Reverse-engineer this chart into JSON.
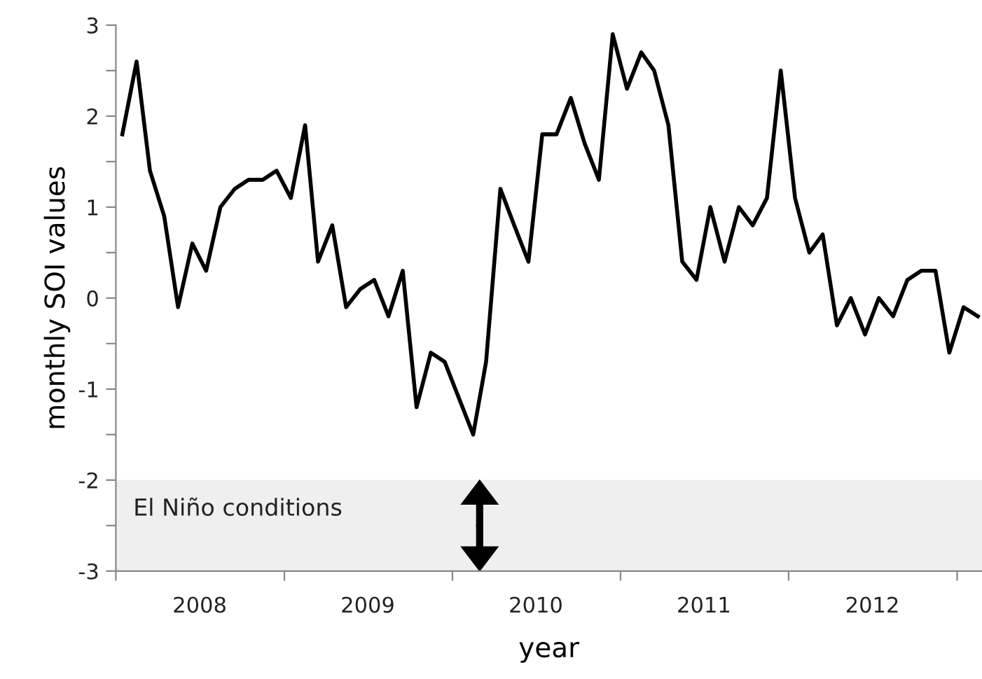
{
  "chart_data": {
    "type": "line",
    "xlabel": "year",
    "ylabel": "monthly SOI values",
    "x": [
      "2008-01-15",
      "2008-02-15",
      "2008-03-15",
      "2008-04-15",
      "2008-05-15",
      "2008-06-15",
      "2008-07-15",
      "2008-08-15",
      "2008-09-15",
      "2008-10-15",
      "2008-11-15",
      "2008-12-15",
      "2009-01-15",
      "2009-02-15",
      "2009-03-15",
      "2009-04-15",
      "2009-05-15",
      "2009-06-15",
      "2009-07-15",
      "2009-08-15",
      "2009-09-15",
      "2009-10-15",
      "2009-11-15",
      "2009-12-15",
      "2010-01-15",
      "2010-02-15",
      "2010-03-15",
      "2010-04-15",
      "2010-05-15",
      "2010-06-15",
      "2010-07-15",
      "2010-08-15",
      "2010-09-15",
      "2010-10-15",
      "2010-11-15",
      "2010-12-15",
      "2011-01-15",
      "2011-02-15",
      "2011-03-15",
      "2011-04-15",
      "2011-05-15",
      "2011-06-15",
      "2011-07-15",
      "2011-08-15",
      "2011-09-15",
      "2011-10-15",
      "2011-11-15",
      "2011-12-15",
      "2012-01-15",
      "2012-02-15",
      "2012-03-15",
      "2012-04-15",
      "2012-05-15",
      "2012-06-15",
      "2012-07-15",
      "2012-08-15",
      "2012-09-15",
      "2012-10-15",
      "2012-11-15",
      "2012-12-15",
      "2013-01-15",
      "2013-02-15"
    ],
    "series": [
      {
        "color": "#000000",
        "values": [
          1.8,
          2.6,
          1.4,
          0.9,
          -0.1,
          0.6,
          0.3,
          1.0,
          1.2,
          1.3,
          1.3,
          1.4,
          1.1,
          1.9,
          0.4,
          0.8,
          -0.1,
          0.1,
          0.2,
          -0.2,
          0.3,
          -1.2,
          -0.6,
          -0.7,
          -1.1,
          -1.5,
          -0.7,
          1.2,
          0.8,
          0.4,
          1.8,
          1.8,
          2.2,
          1.7,
          1.3,
          2.9,
          2.3,
          2.7,
          2.5,
          1.9,
          0.4,
          0.2,
          1.0,
          0.4,
          1.0,
          0.8,
          1.1,
          2.5,
          1.1,
          0.5,
          0.7,
          -0.3,
          0.0,
          -0.4,
          0.0,
          -0.2,
          0.2,
          0.3,
          0.3,
          -0.6,
          -0.1,
          -0.2
        ]
      }
    ],
    "xlim": [
      "2008-01-01",
      "2013-02-24"
    ],
    "xticks": [
      {
        "value": "2008-01-01",
        "label": null
      },
      {
        "value": "2008-07-01",
        "label": "2008"
      },
      {
        "value": "2009-01-01",
        "label": null
      },
      {
        "value": "2009-07-01",
        "label": "2009"
      },
      {
        "value": "2010-01-01",
        "label": null
      },
      {
        "value": "2010-07-01",
        "label": "2010"
      },
      {
        "value": "2011-01-01",
        "label": null
      },
      {
        "value": "2011-07-01",
        "label": "2011"
      },
      {
        "value": "2012-01-01",
        "label": null
      },
      {
        "value": "2012-07-01",
        "label": "2012"
      },
      {
        "value": "2013-01-01",
        "label": null
      }
    ],
    "ylim": [
      -3,
      3
    ],
    "yticks": [
      -3,
      {
        "value": -2.5,
        "label": null
      },
      -2,
      {
        "value": -1.5,
        "label": null
      },
      -1,
      {
        "value": -0.5,
        "label": null
      },
      0,
      {
        "value": 0.5,
        "label": null
      },
      1,
      {
        "value": 1.5,
        "label": null
      },
      2,
      {
        "value": 2.5,
        "label": null
      },
      3
    ],
    "bands": [
      {
        "axis": "y",
        "from": -3,
        "to": -2,
        "label": "El Niño conditions",
        "color": "#efefef"
      }
    ],
    "line_style": "solid",
    "marker": "none",
    "grid": false
  }
}
